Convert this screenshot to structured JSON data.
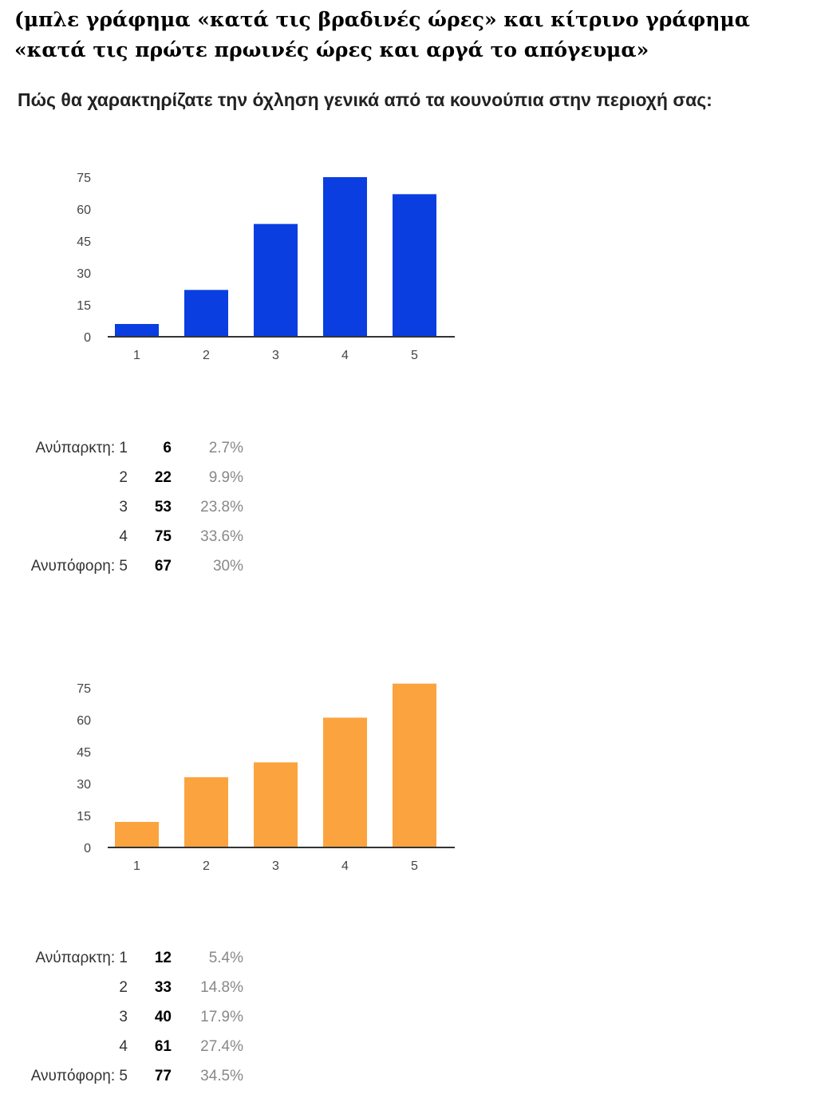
{
  "caption": "(μπλε γράφημα «κατά τις βραδινές ώρες» και κίτρινο γράφημα «κατά τις πρώτε πρωινές ώρες και αργά το απόγευμα»",
  "question": "Πώς θα χαρακτηρίζατε την όχληση γενικά από τα κουνούπια στην περιοχή σας:",
  "chart_data": [
    {
      "type": "bar",
      "categories": [
        "1",
        "2",
        "3",
        "4",
        "5"
      ],
      "values": [
        6,
        22,
        53,
        75,
        67
      ],
      "ylim": [
        0,
        75
      ],
      "yticks": [
        "0",
        "15",
        "30",
        "45",
        "60",
        "75"
      ],
      "color": "#0a3ee0",
      "grid": false,
      "title": "",
      "xlabel": "",
      "ylabel": ""
    },
    {
      "type": "bar",
      "categories": [
        "1",
        "2",
        "3",
        "4",
        "5"
      ],
      "values": [
        12,
        33,
        40,
        61,
        77
      ],
      "ylim": [
        0,
        75
      ],
      "yticks": [
        "0",
        "15",
        "30",
        "45",
        "60",
        "75"
      ],
      "color": "#fba43f",
      "grid": false,
      "title": "",
      "xlabel": "",
      "ylabel": ""
    }
  ],
  "stats": [
    {
      "rows": [
        {
          "label": "Ανύπαρκτη: 1",
          "count": "6",
          "pct": "2.7%"
        },
        {
          "label": "2",
          "count": "22",
          "pct": "9.9%"
        },
        {
          "label": "3",
          "count": "53",
          "pct": "23.8%"
        },
        {
          "label": "4",
          "count": "75",
          "pct": "33.6%"
        },
        {
          "label": "Ανυπόφορη: 5",
          "count": "67",
          "pct": "30%"
        }
      ]
    },
    {
      "rows": [
        {
          "label": "Ανύπαρκτη: 1",
          "count": "12",
          "pct": "5.4%"
        },
        {
          "label": "2",
          "count": "33",
          "pct": "14.8%"
        },
        {
          "label": "3",
          "count": "40",
          "pct": "17.9%"
        },
        {
          "label": "4",
          "count": "61",
          "pct": "27.4%"
        },
        {
          "label": "Ανυπόφορη: 5",
          "count": "77",
          "pct": "34.5%"
        }
      ]
    }
  ]
}
